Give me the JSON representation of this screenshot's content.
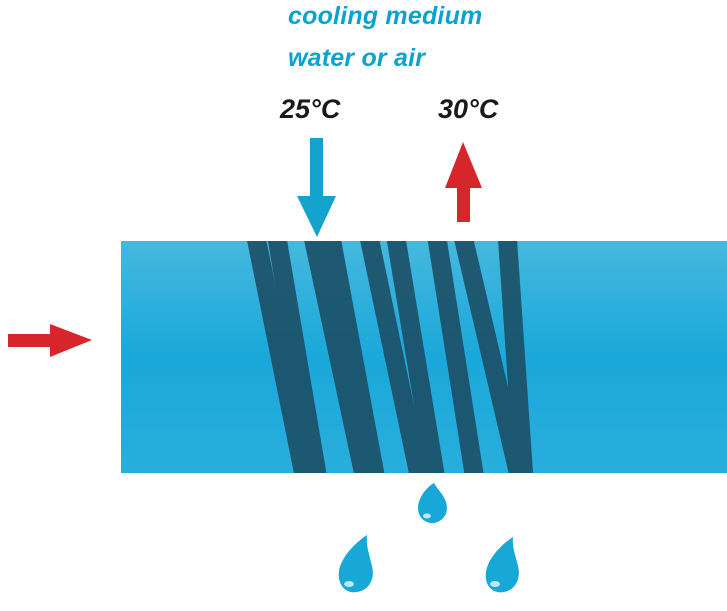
{
  "cooling_medium": {
    "line1": "cooling medium",
    "line2": "water or air",
    "color": "#0aa3cf"
  },
  "temperatures": {
    "inlet": "25°C",
    "outlet": "30°C",
    "text_color": "#1a1a1a"
  },
  "colors": {
    "inlet_arrow": "#14a3cc",
    "outlet_arrow": "#d7262b",
    "process_arrow": "#d7262b",
    "exchanger_body": "#21aedb",
    "tubes": "#1c4f66",
    "droplets": "#17a8d8"
  },
  "icons": {
    "inlet": "arrow-down-icon",
    "outlet": "arrow-up-icon",
    "process_inlet": "arrow-right-icon",
    "droplet": "water-drop-icon"
  }
}
